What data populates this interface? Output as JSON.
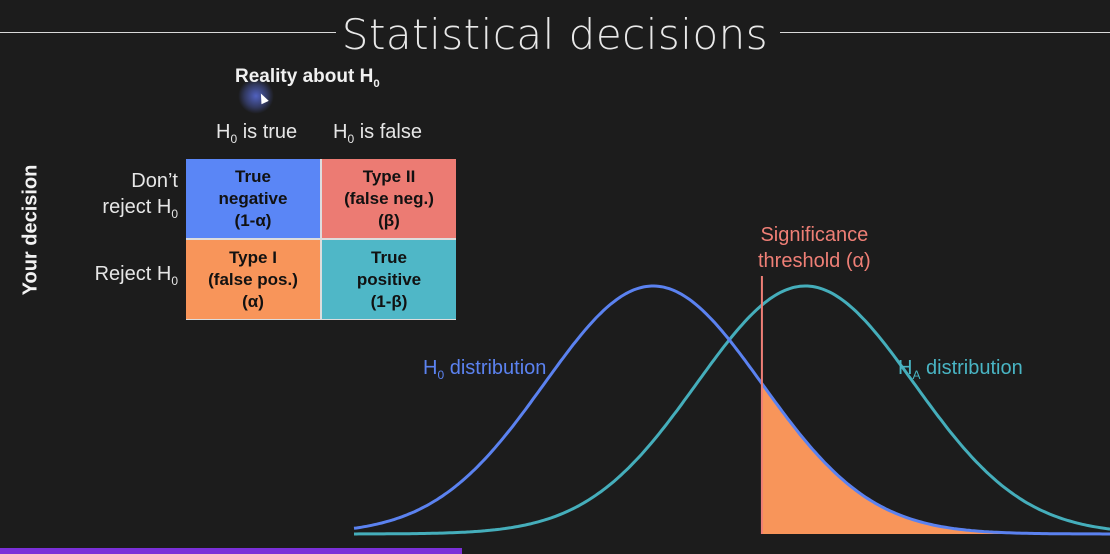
{
  "title": "Statistical decisions",
  "reality_heading": {
    "text": "Reality about H",
    "sub": "0"
  },
  "column_headers": [
    {
      "pre": "H",
      "sub": "0",
      "post": " is true"
    },
    {
      "pre": "H",
      "sub": "0",
      "post": " is false"
    }
  ],
  "row_headers": [
    {
      "line1": "Don’t",
      "line2": "reject H",
      "sub": "0"
    },
    {
      "line1": "",
      "line2": "Reject H",
      "sub": "0"
    }
  ],
  "side_label": "Your decision",
  "matrix": {
    "cells": [
      {
        "lines": [
          "True",
          "negative",
          "(1-α)"
        ],
        "color": "#5a86f6"
      },
      {
        "lines": [
          "Type II",
          "(false neg.)",
          "(β)"
        ],
        "color": "#ec7b73"
      },
      {
        "lines": [
          "Type I",
          "(false pos.)",
          "(α)"
        ],
        "color": "#f8955a"
      },
      {
        "lines": [
          "True",
          "positive",
          "(1-β)"
        ],
        "color": "#4fb7c7"
      }
    ]
  },
  "significance": {
    "line1": "Significance",
    "line2": "threshold (α)",
    "color": "#ef7f76"
  },
  "h0_label": {
    "pre": "H",
    "sub": "0",
    "post": " distribution",
    "color": "#5b82f0"
  },
  "ha_label": {
    "pre": "H",
    "sub": "A",
    "post": " distribution",
    "color": "#49b5c4"
  },
  "colors": {
    "background": "#1c1c1c",
    "h0_curve": "#5b82f0",
    "ha_curve": "#45aebb",
    "threshold_line": "#ef7f76",
    "alpha_fill": "#f8955a"
  },
  "chart_data": {
    "type": "line",
    "series": [
      {
        "name": "H0 distribution",
        "mean": 0,
        "sd": 1
      },
      {
        "name": "HA distribution",
        "mean": 1.4,
        "sd": 1
      }
    ],
    "threshold": 1.0,
    "shaded_region": "alpha (H0 tail beyond threshold)",
    "xlim": [
      -2.75,
      4.2
    ]
  }
}
